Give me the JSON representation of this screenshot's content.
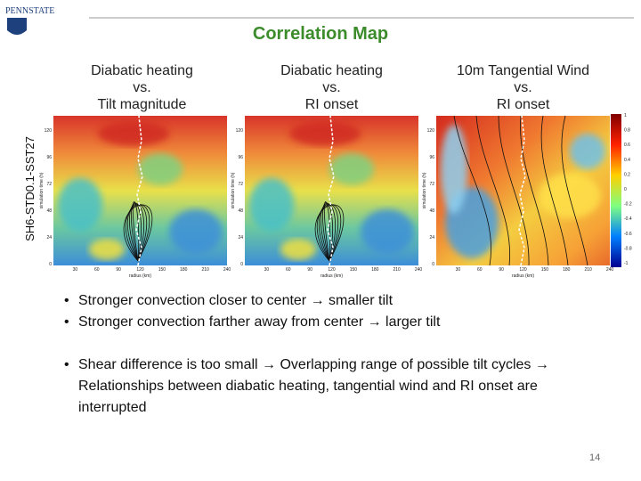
{
  "header": {
    "logo": "PENNSTATE",
    "title": "Correlation Map"
  },
  "row_label": "SH6-STD0.1-SST27",
  "panels": [
    {
      "title": [
        "Diabatic heating",
        "vs.",
        "Tilt magnitude"
      ],
      "y_label": "simulation time (h)",
      "x_label": "radius (km)",
      "yticks": [
        "120",
        "96",
        "72",
        "48",
        "24",
        "0"
      ],
      "xticks": [
        "30",
        "60",
        "90",
        "120",
        "150",
        "180",
        "210",
        "240"
      ]
    },
    {
      "title": [
        "Diabatic heating",
        "vs.",
        "RI onset"
      ],
      "y_label": "simulation time (h)",
      "x_label": "radius (km)",
      "yticks": [
        "120",
        "96",
        "72",
        "48",
        "24",
        "0"
      ],
      "xticks": [
        "30",
        "60",
        "90",
        "120",
        "150",
        "180",
        "210",
        "240"
      ]
    },
    {
      "title": [
        "10m Tangential Wind",
        "vs.",
        "RI onset"
      ],
      "y_label": "simulation time (h)",
      "x_label": "radius (km)",
      "yticks": [
        "120",
        "96",
        "72",
        "48",
        "24",
        "0"
      ],
      "xticks": [
        "30",
        "60",
        "90",
        "120",
        "150",
        "180",
        "210",
        "240"
      ]
    }
  ],
  "colorbar": {
    "ticks": [
      "1",
      "0.8",
      "0.6",
      "0.4",
      "0.2",
      "0",
      "-0.2",
      "-0.4",
      "-0.6",
      "-0.8",
      "-1"
    ]
  },
  "bullets": [
    "Stronger convection closer to center → smaller tilt",
    "Stronger convection farther away from center → larger tilt",
    "Shear difference is too small → Overlapping range of possible tilt cycles → Relationships between diabatic heating, tangential wind and RI onset are interrupted"
  ],
  "page_number": "14"
}
